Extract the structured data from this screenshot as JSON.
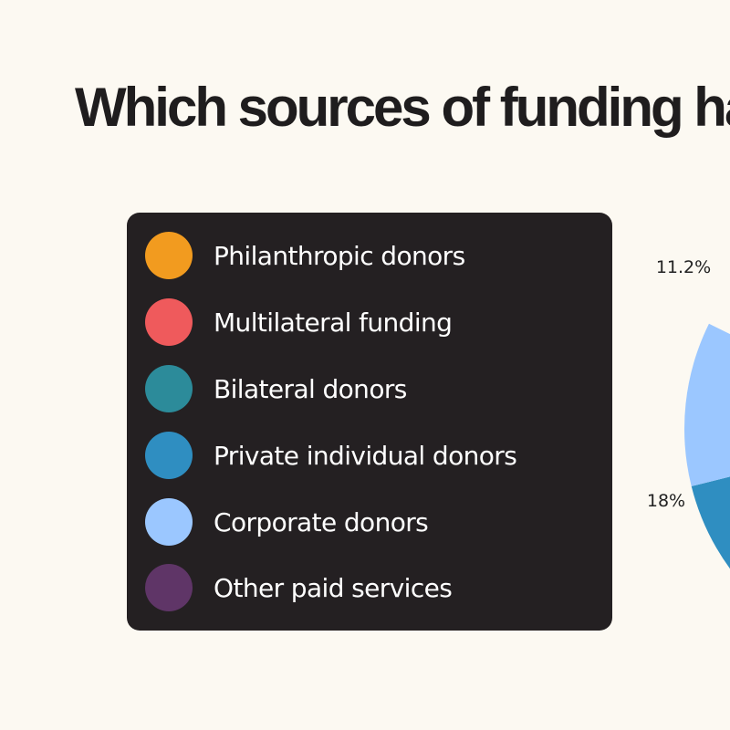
{
  "chart_data": {
    "type": "pie",
    "title": "Which sources of funding ha",
    "legend_position": "left",
    "slices": [
      {
        "name": "Philanthropic donors",
        "color": "#f29b1f"
      },
      {
        "name": "Multilateral funding",
        "color": "#ef5a5c"
      },
      {
        "name": "Bilateral donors",
        "color": "#2c8b9a"
      },
      {
        "name": "Private individual donors",
        "color": "#2f8ec1",
        "value": 18,
        "label": "18%"
      },
      {
        "name": "Corporate donors",
        "color": "#9bc7ff",
        "value": 11.2,
        "label": "11.2%"
      },
      {
        "name": "Other paid services",
        "color": "#5f3567"
      }
    ]
  }
}
